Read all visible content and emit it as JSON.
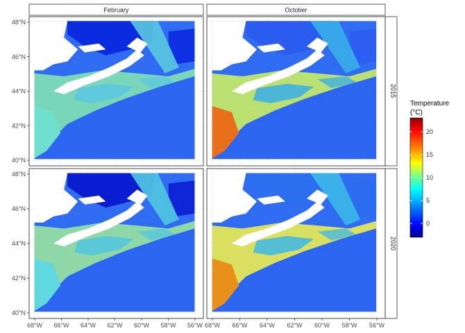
{
  "columns": [
    "February",
    "October"
  ],
  "rows": [
    "2015",
    "2020"
  ],
  "x_ticks": [
    "68°W",
    "66°W",
    "64°W",
    "62°W",
    "60°W",
    "58°W",
    "56°W"
  ],
  "y_ticks": [
    "48°N",
    "46°N",
    "44°N",
    "42°N",
    "40°N"
  ],
  "legend": {
    "title_line1": "Temperature",
    "title_line2": "(°C)",
    "ticks": [
      "20",
      "15",
      "10",
      "5",
      "0"
    ],
    "range": [
      -3,
      23
    ],
    "colors": [
      "#00008b",
      "#0000ff",
      "#0080ff",
      "#00ffff",
      "#80ff80",
      "#ffff00",
      "#ff8000",
      "#ff0000",
      "#8b0000"
    ]
  },
  "panels": [
    {
      "month": "February",
      "year": "2015",
      "shelf_color": "#7ad6b8",
      "inner_color": "#5ac8e0",
      "deep_color": "#2f6cf2",
      "gulf_color": "#0a2be0",
      "warm_spot": "#6fe0d0"
    },
    {
      "month": "October",
      "year": "2015",
      "shelf_color": "#b9e070",
      "inner_color": "#3aaee8",
      "deep_color": "#2f6cf2",
      "gulf_color": "#2a5cf0",
      "warm_spot": "#e8701a"
    },
    {
      "month": "February",
      "year": "2020",
      "shelf_color": "#8ed8a8",
      "inner_color": "#52c6e0",
      "deep_color": "#2f6cf2",
      "gulf_color": "#0a1ed0",
      "warm_spot": "#60d8e0"
    },
    {
      "month": "October",
      "year": "2020",
      "shelf_color": "#d9e060",
      "inner_color": "#3cb8e8",
      "deep_color": "#2f6cf2",
      "gulf_color": "#2c6ef0",
      "warm_spot": "#e8901a"
    }
  ]
}
